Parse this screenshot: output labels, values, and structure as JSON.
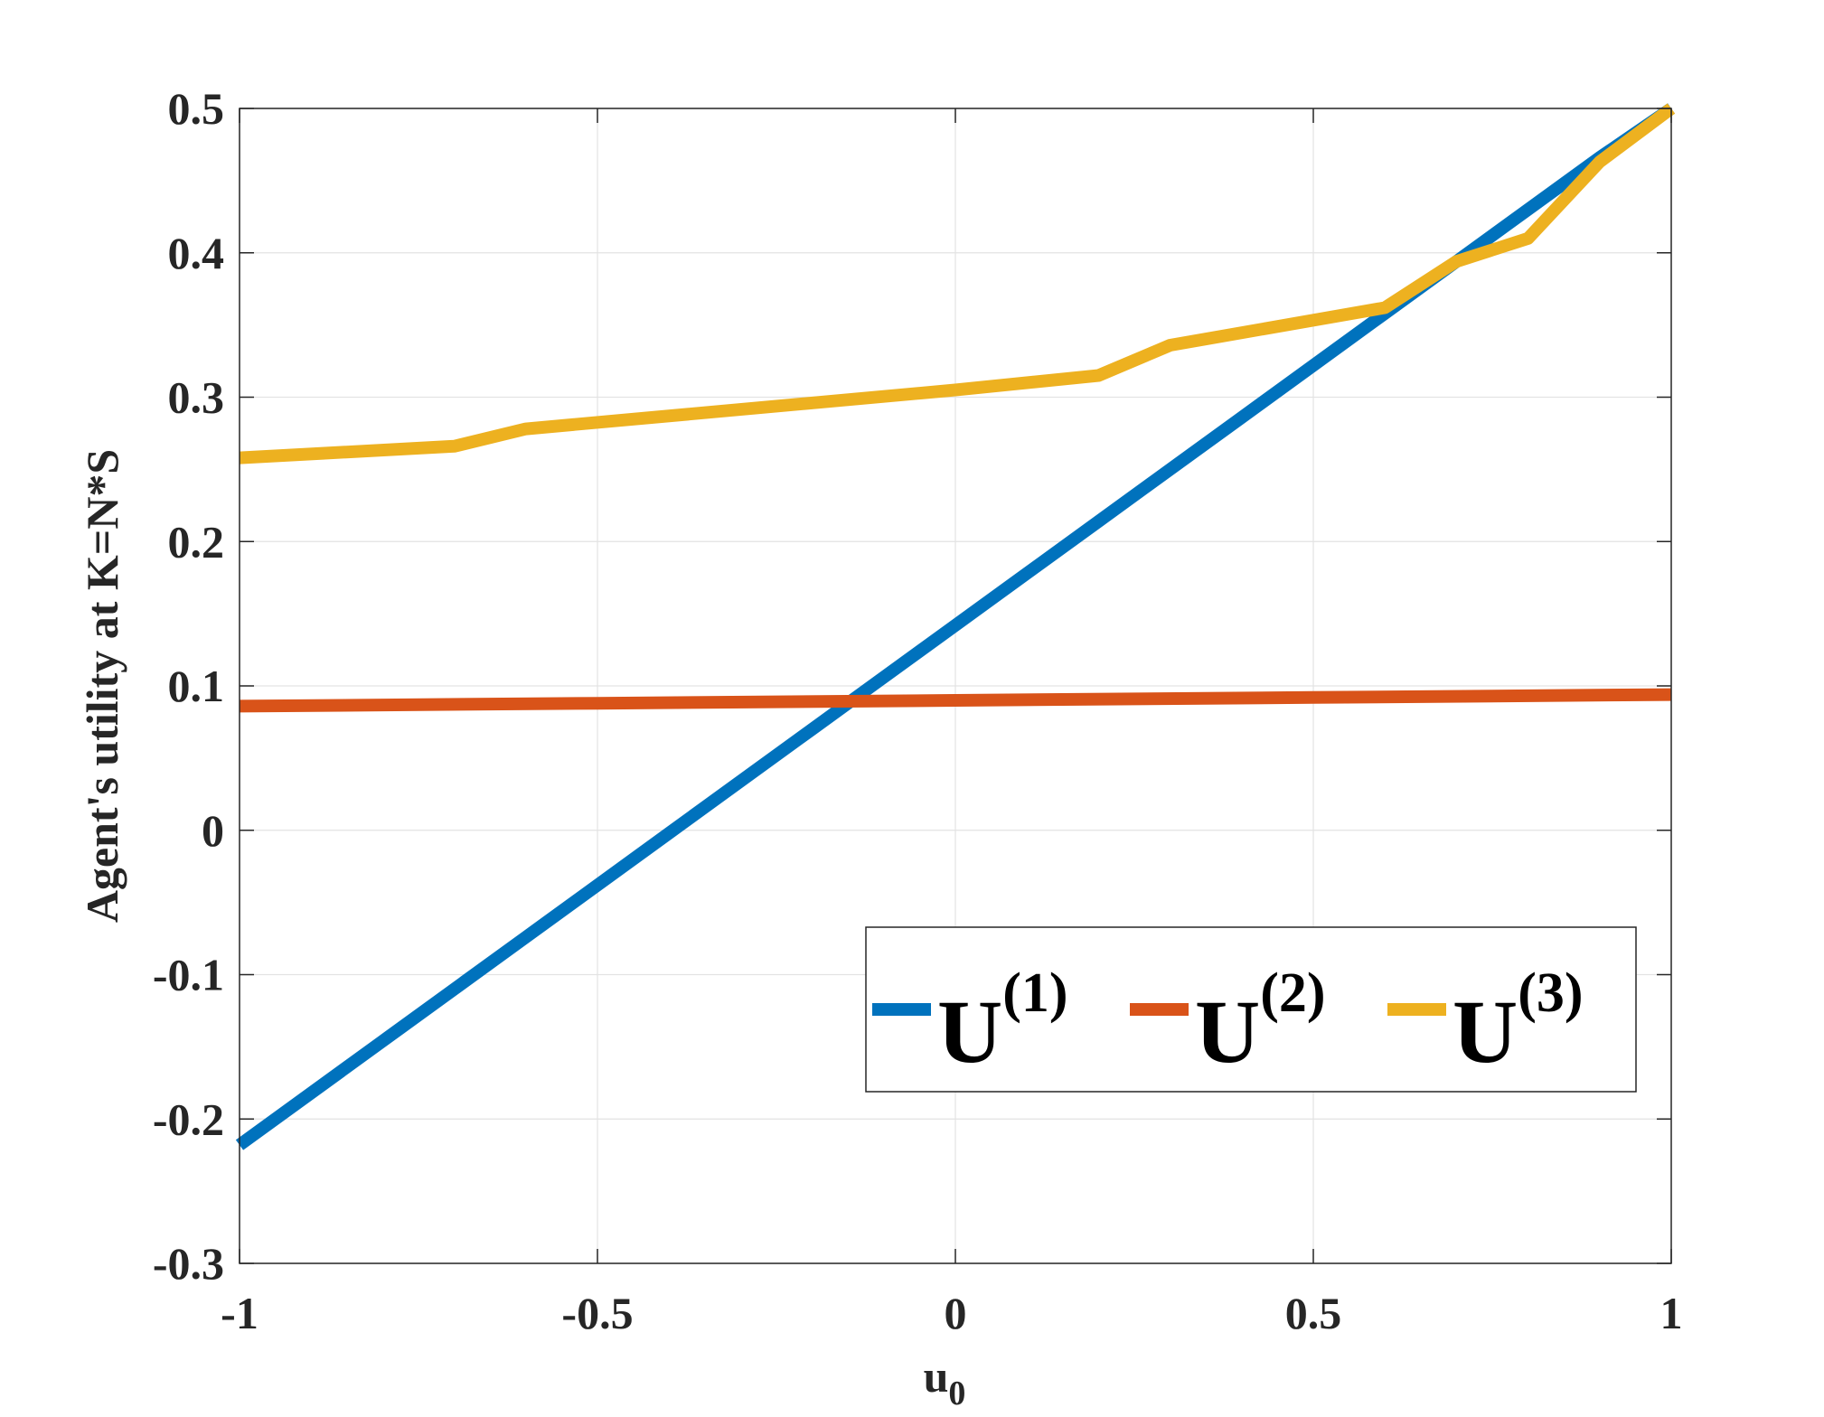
{
  "chart_data": {
    "type": "line",
    "xlabel": "u",
    "xlabel_sub": "0",
    "ylabel": "Agent's utility at K=N*S",
    "xlim": [
      -1,
      1
    ],
    "ylim": [
      -0.3,
      0.5
    ],
    "xticks": [
      -1,
      -0.5,
      0,
      0.5,
      1
    ],
    "xtick_labels": [
      "-1",
      "-0.5",
      "0",
      "0.5",
      "1"
    ],
    "yticks": [
      -0.3,
      -0.2,
      -0.1,
      0,
      0.1,
      0.2,
      0.3,
      0.4,
      0.5
    ],
    "ytick_labels": [
      "-0.3",
      "-0.2",
      "-0.1",
      "0",
      "0.1",
      "0.2",
      "0.3",
      "0.4",
      "0.5"
    ],
    "grid": true,
    "legend_position": "bottom-right",
    "series": [
      {
        "name": "U",
        "name_sup": "(1)",
        "color": "#0072BD",
        "x": [
          -1,
          -0.8,
          -0.6,
          -0.4,
          -0.2,
          0,
          0.2,
          0.4,
          0.6,
          0.8,
          0.9,
          1
        ],
        "y": [
          -0.218,
          -0.146,
          -0.074,
          -0.002,
          0.07,
          0.142,
          0.214,
          0.286,
          0.358,
          0.43,
          0.466,
          0.5
        ]
      },
      {
        "name": "U",
        "name_sup": "(2)",
        "color": "#D95319",
        "x": [
          -1,
          -0.5,
          0,
          0.5,
          1
        ],
        "y": [
          0.086,
          0.088,
          0.09,
          0.092,
          0.094
        ]
      },
      {
        "name": "U",
        "name_sup": "(3)",
        "color": "#EDB120",
        "x": [
          -1,
          -0.7,
          -0.6,
          0,
          0.2,
          0.3,
          0.6,
          0.7,
          0.8,
          0.9,
          1
        ],
        "y": [
          0.258,
          0.266,
          0.278,
          0.305,
          0.315,
          0.336,
          0.362,
          0.394,
          0.41,
          0.463,
          0.5
        ]
      }
    ]
  }
}
